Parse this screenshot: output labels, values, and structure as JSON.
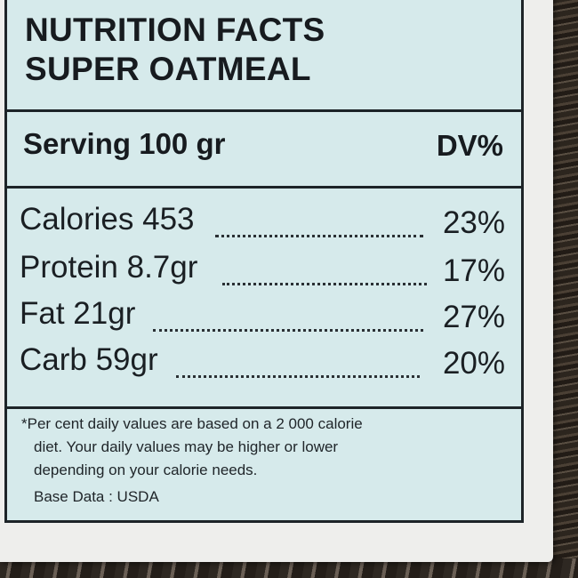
{
  "title": {
    "line1": "NUTRITION FACTS",
    "line2": "SUPER OATMEAL"
  },
  "serving": {
    "label": "Serving 100 gr",
    "dv_header": "DV%"
  },
  "nutrients": [
    {
      "name": "Calories 453",
      "dv": "23%"
    },
    {
      "name": "Protein 8.7gr",
      "dv": "17%"
    },
    {
      "name": "Fat 21gr",
      "dv": "27%"
    },
    {
      "name": "Carb 59gr",
      "dv": "20%"
    }
  ],
  "footnote": {
    "line1": "*Per cent daily values are based on a 2 000 calorie",
    "line2": "diet. Your daily values may be higher or lower",
    "line3": "depending on your calorie needs.",
    "source": "Base Data : USDA"
  },
  "colors": {
    "label_bg": "#d6eaeb",
    "border": "#1d2428",
    "paper": "#eeeeec"
  }
}
